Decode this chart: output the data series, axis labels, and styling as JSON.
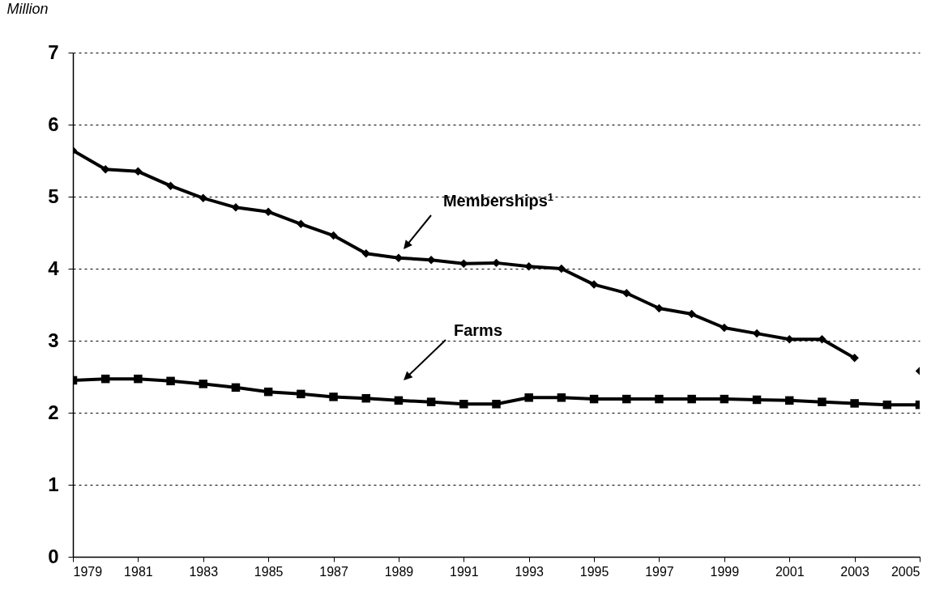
{
  "chart_data": {
    "type": "line",
    "ylabel": "Million",
    "x": [
      1979,
      1980,
      1981,
      1982,
      1983,
      1984,
      1985,
      1986,
      1987,
      1988,
      1989,
      1990,
      1991,
      1992,
      1993,
      1994,
      1995,
      1996,
      1997,
      1998,
      1999,
      2000,
      2001,
      2002,
      2003,
      2004,
      2005
    ],
    "series": [
      {
        "name": "Memberships$^{1}$",
        "color": "#000000",
        "marker": "diamond",
        "values": [
          5.64,
          5.38,
          5.35,
          5.15,
          4.98,
          4.85,
          4.79,
          4.62,
          4.46,
          4.21,
          4.15,
          4.12,
          4.07,
          4.08,
          4.03,
          4.0,
          3.78,
          3.66,
          3.45,
          3.37,
          3.18,
          3.1,
          3.02,
          3.02,
          2.76,
          null,
          2.58
        ]
      },
      {
        "name": "Farms",
        "color": "#000000",
        "marker": "square",
        "values": [
          2.45,
          2.47,
          2.47,
          2.44,
          2.4,
          2.35,
          2.29,
          2.26,
          2.22,
          2.2,
          2.17,
          2.15,
          2.12,
          2.12,
          2.21,
          2.21,
          2.19,
          2.19,
          2.19,
          2.19,
          2.19,
          2.18,
          2.17,
          2.15,
          2.13,
          2.11,
          2.11
        ]
      }
    ],
    "xlim": [
      1979,
      2005
    ],
    "xticks": [
      1979,
      1981,
      1983,
      1985,
      1987,
      1989,
      1991,
      1993,
      1995,
      1997,
      1999,
      2001,
      2003,
      2005
    ],
    "ylim": [
      0,
      7
    ],
    "yticks": [
      0,
      1,
      2,
      3,
      4,
      5,
      6,
      7
    ],
    "grid": "y"
  }
}
